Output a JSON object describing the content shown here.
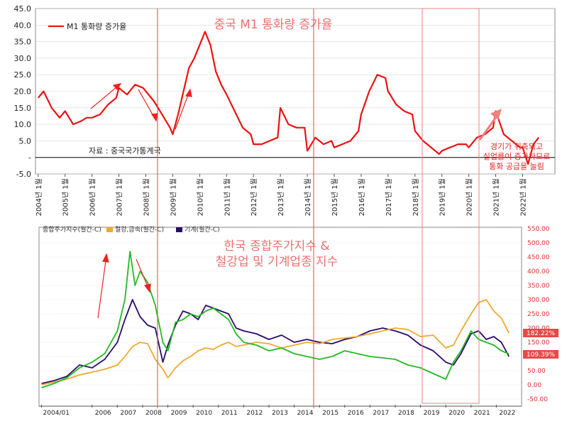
{
  "chart_data": [
    {
      "type": "line",
      "title": "중국 M1 통화량 증가율",
      "legend": "M1 통화량 증가율",
      "legend_position": "top-left",
      "source_note": "자료 : 중국국가통계국",
      "annotation": "경기가 위축되고 실업률이 증가하므로 통화 공급을 늘림",
      "ylim": [
        -5,
        45
      ],
      "y_ticks": [
        "45.0",
        "40.0",
        "35.0",
        "30.0",
        "25.0",
        "20.0",
        "15.0",
        "10.0",
        "5.0",
        "-",
        "-5.0"
      ],
      "x_ticks": [
        "2004년 1월",
        "2005년 1월",
        "2006년 1월",
        "2007년 1월",
        "2008년 1월",
        "2009년 1월",
        "2010년 1월",
        "2011년 1월",
        "2012년 1월",
        "2013년 1월",
        "2014년 1월",
        "2015년 1월",
        "2016년 1월",
        "2017년 1월",
        "2018년 1월",
        "2019년 1월",
        "2020년 1월",
        "2021년 1월",
        "2022년 1월"
      ],
      "grid": true,
      "series": [
        {
          "name": "M1 통화량 증가율",
          "color": "#ee1111",
          "x": [
            2004.0,
            2004.2,
            2004.5,
            2004.8,
            2005.0,
            2005.3,
            2005.6,
            2005.8,
            2006.0,
            2006.3,
            2006.6,
            2006.9,
            2007.0,
            2007.3,
            2007.6,
            2007.9,
            2008.0,
            2008.3,
            2008.6,
            2008.9,
            2009.0,
            2009.2,
            2009.4,
            2009.6,
            2009.8,
            2010.0,
            2010.2,
            2010.4,
            2010.6,
            2010.8,
            2011.0,
            2011.3,
            2011.6,
            2011.9,
            2012.0,
            2012.3,
            2012.6,
            2012.9,
            2013.0,
            2013.3,
            2013.6,
            2013.9,
            2014.0,
            2014.3,
            2014.6,
            2014.9,
            2015.0,
            2015.3,
            2015.6,
            2015.9,
            2016.0,
            2016.3,
            2016.6,
            2016.9,
            2017.0,
            2017.3,
            2017.6,
            2017.9,
            2018.0,
            2018.3,
            2018.6,
            2018.9,
            2019.0,
            2019.3,
            2019.6,
            2019.9,
            2020.0,
            2020.3,
            2020.6,
            2020.9,
            2021.0,
            2021.3,
            2021.6,
            2021.9,
            2022.0,
            2022.2,
            2022.4,
            2022.6
          ],
          "values": [
            18,
            20,
            15,
            12,
            14,
            10,
            11,
            12,
            12,
            13,
            16,
            18,
            21,
            19,
            22,
            21,
            20,
            17,
            13,
            9,
            7,
            13,
            20,
            27,
            30,
            34,
            38,
            34,
            26,
            22,
            19,
            14,
            9,
            7,
            4,
            4,
            5,
            6,
            15,
            10,
            9,
            9,
            2,
            6,
            4,
            5,
            3,
            4,
            5,
            8,
            13,
            20,
            25,
            24,
            20,
            16,
            14,
            13,
            8,
            5,
            3,
            1,
            2,
            3,
            4,
            4,
            3,
            6,
            7,
            9,
            14,
            7,
            5,
            3,
            3,
            -2,
            4,
            6
          ]
        }
      ]
    },
    {
      "type": "line",
      "title": "한국 종합주가지수 & 철강업 및 기계업종 지수",
      "legend": [
        "종합주가지수(월간-C)",
        "철강,금속(월간-C)",
        "기계(월간-C)"
      ],
      "legend_position": "top-left",
      "ylim": [
        -50,
        550
      ],
      "y_ticks": [
        "550.00",
        "500.00",
        "450.00",
        "400.00",
        "350.00",
        "300.00",
        "250.00",
        "200.00",
        "150.00",
        "100.00",
        "50.00",
        "0.00",
        "-50.00"
      ],
      "x_ticks": [
        "2004/01",
        "2006",
        "2007",
        "2008",
        "2009",
        "2010",
        "2011",
        "2012",
        "2013",
        "2014",
        "2015",
        "2016",
        "2017",
        "2018",
        "2019",
        "2020",
        "2021",
        "2022"
      ],
      "value_badges": [
        "182.22%",
        "109.39%"
      ],
      "grid": true,
      "series": [
        {
          "name": "종합주가지수(월간-C)",
          "color": "#2b0a6e",
          "x": [
            2004.0,
            2004.5,
            2005.0,
            2005.5,
            2006.0,
            2006.5,
            2007.0,
            2007.3,
            2007.6,
            2007.9,
            2008.2,
            2008.5,
            2008.8,
            2009.0,
            2009.3,
            2009.6,
            2009.9,
            2010.2,
            2010.5,
            2010.8,
            2011.1,
            2011.4,
            2011.7,
            2012.0,
            2012.5,
            2013.0,
            2013.5,
            2014.0,
            2014.5,
            2015.0,
            2015.5,
            2016.0,
            2016.5,
            2017.0,
            2017.5,
            2018.0,
            2018.5,
            2019.0,
            2019.5,
            2020.0,
            2020.3,
            2020.6,
            2021.0,
            2021.3,
            2021.6,
            2021.9,
            2022.2,
            2022.5
          ],
          "values": [
            5,
            15,
            30,
            70,
            60,
            90,
            150,
            230,
            300,
            240,
            210,
            200,
            80,
            140,
            210,
            260,
            250,
            230,
            280,
            270,
            260,
            250,
            200,
            190,
            180,
            160,
            175,
            150,
            160,
            150,
            145,
            160,
            170,
            190,
            200,
            190,
            175,
            140,
            120,
            80,
            70,
            110,
            180,
            190,
            160,
            170,
            150,
            100
          ]
        },
        {
          "name": "철강,금속(월간-C)",
          "color": "#f0a830",
          "x": [
            2004.0,
            2004.5,
            2005.0,
            2005.5,
            2006.0,
            2006.5,
            2007.0,
            2007.3,
            2007.6,
            2007.9,
            2008.2,
            2008.5,
            2008.8,
            2009.0,
            2009.3,
            2009.6,
            2009.9,
            2010.2,
            2010.5,
            2010.8,
            2011.1,
            2011.4,
            2011.7,
            2012.0,
            2012.5,
            2013.0,
            2013.5,
            2014.0,
            2014.5,
            2015.0,
            2015.5,
            2016.0,
            2016.5,
            2017.0,
            2017.5,
            2018.0,
            2018.5,
            2019.0,
            2019.5,
            2020.0,
            2020.3,
            2020.6,
            2021.0,
            2021.3,
            2021.6,
            2021.9,
            2022.2,
            2022.5
          ],
          "values": [
            0,
            10,
            20,
            35,
            45,
            55,
            70,
            100,
            135,
            150,
            145,
            90,
            55,
            25,
            60,
            85,
            100,
            120,
            130,
            125,
            140,
            150,
            135,
            140,
            150,
            145,
            130,
            140,
            150,
            145,
            160,
            165,
            170,
            180,
            190,
            200,
            195,
            170,
            175,
            130,
            140,
            190,
            250,
            290,
            300,
            260,
            235,
            182
          ]
        },
        {
          "name": "기계(월간-C)",
          "color": "#22bb22",
          "x": [
            2004.0,
            2004.5,
            2005.0,
            2005.5,
            2006.0,
            2006.5,
            2007.0,
            2007.3,
            2007.5,
            2007.7,
            2007.9,
            2008.2,
            2008.5,
            2008.8,
            2009.0,
            2009.3,
            2009.6,
            2009.9,
            2010.2,
            2010.5,
            2010.8,
            2011.1,
            2011.4,
            2011.7,
            2012.0,
            2012.5,
            2013.0,
            2013.5,
            2014.0,
            2014.5,
            2015.0,
            2015.5,
            2016.0,
            2016.5,
            2017.0,
            2017.5,
            2018.0,
            2018.5,
            2019.0,
            2019.5,
            2020.0,
            2020.3,
            2020.6,
            2021.0,
            2021.3,
            2021.6,
            2021.9,
            2022.2,
            2022.5
          ],
          "values": [
            -10,
            5,
            25,
            60,
            80,
            110,
            190,
            300,
            470,
            350,
            400,
            360,
            280,
            150,
            120,
            220,
            230,
            250,
            240,
            260,
            270,
            250,
            230,
            180,
            150,
            140,
            120,
            130,
            110,
            100,
            90,
            100,
            120,
            110,
            100,
            95,
            90,
            70,
            60,
            40,
            20,
            80,
            120,
            190,
            160,
            150,
            140,
            120,
            109
          ]
        }
      ]
    }
  ]
}
